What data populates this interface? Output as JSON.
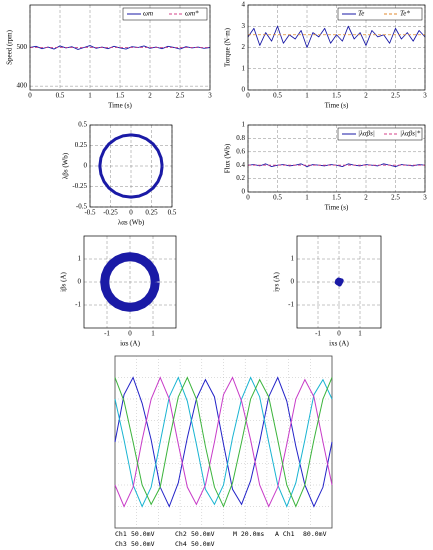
{
  "chart_data": [
    {
      "type": "line",
      "xlabel": "Time (s)",
      "ylabel": "Speed (rpm)",
      "xlim": [
        0,
        3
      ],
      "xticks": [
        0,
        0.5,
        1,
        1.5,
        2,
        2.5,
        3
      ],
      "ylim": [
        390,
        610
      ],
      "yticks": [
        400,
        500
      ],
      "grid": true,
      "legend": "upper right",
      "x": [
        0,
        0.1,
        0.2,
        0.3,
        0.4,
        0.5,
        0.6,
        0.7,
        0.8,
        0.9,
        1,
        1.1,
        1.2,
        1.3,
        1.4,
        1.5,
        1.6,
        1.7,
        1.8,
        1.9,
        2,
        2.1,
        2.2,
        2.3,
        2.4,
        2.5,
        2.6,
        2.7,
        2.8,
        2.9,
        3
      ],
      "series": [
        {
          "name": "ωm",
          "color": "#1a1aa6",
          "values": [
            500,
            503,
            497,
            501,
            496,
            504,
            499,
            502,
            495,
            500,
            505,
            498,
            501,
            497,
            503,
            499,
            496,
            502,
            500,
            504,
            498,
            501,
            497,
            503,
            500,
            496,
            502,
            499,
            501,
            498,
            500
          ]
        },
        {
          "name": "ωm*",
          "color": "#d4408a",
          "x": [
            0,
            3
          ],
          "values": [
            500,
            500
          ]
        }
      ]
    },
    {
      "type": "line",
      "xlabel": "Time (s)",
      "ylabel": "Torque (N·m)",
      "xlim": [
        0,
        3
      ],
      "xticks": [
        0,
        0.5,
        1,
        1.5,
        2,
        2.5,
        3
      ],
      "ylim": [
        0,
        4
      ],
      "yticks": [
        0,
        1,
        2,
        3,
        4
      ],
      "grid": true,
      "legend": "upper right",
      "x": [
        0,
        0.1,
        0.2,
        0.3,
        0.4,
        0.5,
        0.6,
        0.7,
        0.8,
        0.9,
        1,
        1.1,
        1.2,
        1.3,
        1.4,
        1.5,
        1.6,
        1.7,
        1.8,
        1.9,
        2,
        2.1,
        2.2,
        2.3,
        2.4,
        2.5,
        2.6,
        2.7,
        2.8,
        2.9,
        3
      ],
      "series": [
        {
          "name": "Te",
          "color": "#1a1aa6",
          "values": [
            2.5,
            2.9,
            2.1,
            2.7,
            2.3,
            3.0,
            2.2,
            2.6,
            2.4,
            2.8,
            2.0,
            2.7,
            2.5,
            2.9,
            2.2,
            2.6,
            2.3,
            3.0,
            2.4,
            2.7,
            2.1,
            2.8,
            2.5,
            2.6,
            2.2,
            2.9,
            2.4,
            2.7,
            2.3,
            2.8,
            2.5
          ]
        },
        {
          "name": "Te*",
          "color": "#e08a2c",
          "x": [
            0,
            3
          ],
          "values": [
            2.6,
            2.6
          ]
        }
      ]
    },
    {
      "type": "line",
      "xlabel": "λαs (Wb)",
      "ylabel": "λβs (Wb)",
      "xlim": [
        -0.5,
        0.5
      ],
      "xticks": [
        -0.5,
        -0.25,
        0,
        0.25,
        0.5
      ],
      "ylim": [
        -0.5,
        0.5
      ],
      "yticks": [
        -0.5,
        -0.25,
        0,
        0.25,
        0.5
      ],
      "grid": true,
      "x": [
        0.38,
        0.367,
        0.329,
        0.269,
        0.19,
        0.098,
        0,
        -0.098,
        -0.19,
        -0.269,
        -0.329,
        -0.367,
        -0.38,
        -0.367,
        -0.329,
        -0.269,
        -0.19,
        -0.098,
        0,
        0.098,
        0.19,
        0.269,
        0.329,
        0.367,
        0.38
      ],
      "series": [
        {
          "color": "#1a1aa6",
          "values": [
            0,
            0.098,
            0.19,
            0.269,
            0.329,
            0.367,
            0.38,
            0.367,
            0.329,
            0.269,
            0.19,
            0.098,
            0,
            -0.098,
            -0.19,
            -0.269,
            -0.329,
            -0.367,
            -0.38,
            -0.367,
            -0.329,
            -0.269,
            -0.19,
            -0.098,
            0
          ]
        }
      ]
    },
    {
      "type": "line",
      "xlabel": "Time (s)",
      "ylabel": "Flux (Wb)",
      "xlim": [
        0,
        3
      ],
      "xticks": [
        0,
        0.5,
        1,
        1.5,
        2,
        2.5,
        3
      ],
      "ylim": [
        0,
        1
      ],
      "yticks": [
        0,
        0.2,
        0.4,
        0.6,
        0.8,
        1
      ],
      "grid": true,
      "legend": "upper right",
      "x": [
        0,
        0.1,
        0.2,
        0.3,
        0.4,
        0.5,
        0.6,
        0.7,
        0.8,
        0.9,
        1,
        1.1,
        1.2,
        1.3,
        1.4,
        1.5,
        1.6,
        1.7,
        1.8,
        1.9,
        2,
        2.1,
        2.2,
        2.3,
        2.4,
        2.5,
        2.6,
        2.7,
        2.8,
        2.9,
        3
      ],
      "series": [
        {
          "name": "|λαβs|",
          "color": "#1a1aa6",
          "values": [
            0.4,
            0.41,
            0.39,
            0.42,
            0.38,
            0.4,
            0.41,
            0.39,
            0.4,
            0.42,
            0.38,
            0.41,
            0.4,
            0.39,
            0.41,
            0.4,
            0.38,
            0.42,
            0.4,
            0.39,
            0.41,
            0.4,
            0.39,
            0.42,
            0.4,
            0.38,
            0.41,
            0.4,
            0.39,
            0.41,
            0.4
          ]
        },
        {
          "name": "|λαβs|*",
          "color": "#d4408a",
          "x": [
            0,
            3
          ],
          "values": [
            0.4,
            0.4
          ]
        }
      ]
    },
    {
      "type": "line",
      "xlabel": "iαs (A)",
      "ylabel": "iβs (A)",
      "xlim": [
        -2,
        2
      ],
      "xticks": [
        -1,
        0,
        1
      ],
      "ylim": [
        -2,
        2
      ],
      "yticks": [
        -1,
        0,
        1
      ],
      "grid": true,
      "x": [
        1.1,
        1.063,
        0.953,
        0.778,
        0.55,
        0.285,
        0,
        -0.285,
        -0.55,
        -0.778,
        -0.953,
        -1.063,
        -1.1,
        -1.063,
        -0.953,
        -0.778,
        -0.55,
        -0.285,
        0,
        0.285,
        0.55,
        0.778,
        0.953,
        1.063,
        1.1
      ],
      "series": [
        {
          "color": "#1a1aa6",
          "values": [
            0,
            0.285,
            0.55,
            0.778,
            0.953,
            1.063,
            1.1,
            1.063,
            0.953,
            0.778,
            0.55,
            0.285,
            0,
            -0.285,
            -0.55,
            -0.778,
            -0.953,
            -1.063,
            -1.1,
            -1.063,
            -0.953,
            -0.778,
            -0.55,
            -0.285,
            0
          ]
        }
      ]
    },
    {
      "type": "scatter",
      "xlabel": "ixs (A)",
      "ylabel": "iys (A)",
      "xlim": [
        -2,
        2
      ],
      "xticks": [
        -1,
        0,
        1
      ],
      "ylim": [
        -2,
        2
      ],
      "yticks": [
        -1,
        0,
        1
      ],
      "grid": true,
      "x": [
        0,
        0.05,
        -0.05,
        0.1,
        -0.08,
        0.03,
        -0.02,
        0.07,
        -0.1,
        0.12
      ],
      "series": [
        {
          "color": "#1a1aa6",
          "values": [
            0,
            0.08,
            -0.06,
            0.02,
            0.05,
            -0.1,
            0.1,
            -0.04,
            -0.02,
            0.06
          ]
        }
      ]
    },
    {
      "type": "scope",
      "ylim": [
        -4,
        4
      ],
      "timebase": "M 20.0ms",
      "trigger_source": "A  Ch1",
      "trigger_level": "80.0mV",
      "series": [
        {
          "name": "Ch1",
          "scale": "50.0mV",
          "color": "#2323c8",
          "values": [
            0,
            2.2,
            3,
            1.8,
            0.1,
            -2.1,
            -3,
            -1.9,
            0.2,
            2,
            2.9,
            2.1,
            -0.1,
            -2.2,
            -2.9,
            -1.8,
            0,
            2.1,
            3,
            1.9,
            -0.2,
            -2,
            -3,
            -2.1,
            0
          ]
        },
        {
          "name": "Ch2",
          "scale": "50.0mV",
          "color": "#19b4d2",
          "values": [
            2,
            0.1,
            -2,
            -3,
            -2.1,
            0,
            2.1,
            3,
            1.9,
            -0.1,
            -2.2,
            -2.9,
            -2,
            0.2,
            2,
            3,
            2.1,
            0,
            -2,
            -3,
            -1.9,
            0.1,
            2.2,
            2.9,
            2
          ]
        },
        {
          "name": "Ch3",
          "scale": "50.0mV",
          "color": "#c83cc8",
          "values": [
            -2,
            -3,
            -2.1,
            0.1,
            2,
            3,
            2,
            -0.1,
            -2.1,
            -2.9,
            -2,
            0,
            2.2,
            3,
            1.9,
            0.1,
            -2,
            -3,
            -2.1,
            -0.1,
            2,
            2.9,
            2.1,
            0,
            -2
          ]
        },
        {
          "name": "Ch4",
          "scale": "50.0mV",
          "color": "#3cb43c",
          "values": [
            3,
            1.9,
            0,
            -2,
            -2.9,
            -2.1,
            0.1,
            2.1,
            3,
            2,
            -0.2,
            -2.1,
            -3,
            -1.9,
            0,
            2,
            2.9,
            2.1,
            0.1,
            -2,
            -3,
            -2,
            0.1,
            2,
            3
          ]
        }
      ]
    }
  ]
}
